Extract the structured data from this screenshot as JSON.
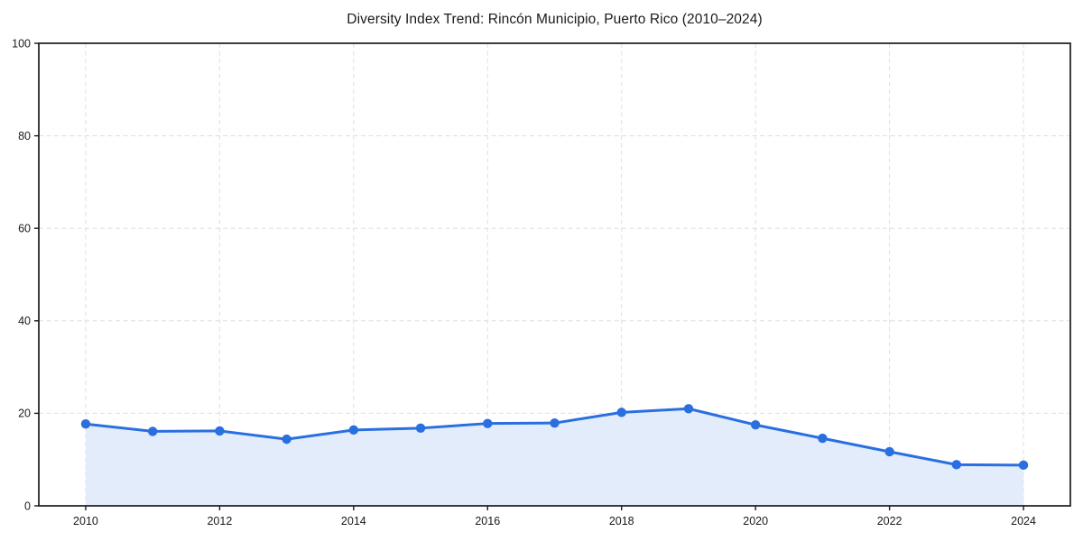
{
  "page": {
    "background": "#ffffff"
  },
  "chart_data": {
    "type": "line",
    "title": "Diversity Index Trend: Rincón Municipio, Puerto Rico (2010–2024)",
    "x": [
      2010,
      2011,
      2012,
      2013,
      2014,
      2015,
      2016,
      2017,
      2018,
      2019,
      2020,
      2021,
      2022,
      2023,
      2024
    ],
    "series": [
      {
        "name": "Diversity Index",
        "values": [
          17.7,
          16.1,
          16.2,
          14.4,
          16.4,
          16.8,
          17.8,
          17.9,
          20.2,
          21.0,
          17.5,
          14.6,
          11.7,
          8.9,
          8.8
        ]
      }
    ],
    "xlabel": "",
    "ylabel": "",
    "xlim": [
      2009.3,
      2024.7
    ],
    "ylim": [
      0,
      100
    ],
    "xticks": [
      2010,
      2012,
      2014,
      2016,
      2018,
      2020,
      2022,
      2024
    ],
    "yticks": [
      0,
      20,
      40,
      60,
      80,
      100
    ],
    "grid": true,
    "grid_style": "dashed",
    "legend": "none",
    "area": true,
    "marker": "circle"
  },
  "colors": {
    "line": "#2a6fdf",
    "marker": "#2a6fdf",
    "area_fill": "#e3ecfb",
    "grid": "#dedede",
    "spine": "#1a1a1a",
    "text": "#1a1a1a",
    "background": "#ffffff"
  }
}
